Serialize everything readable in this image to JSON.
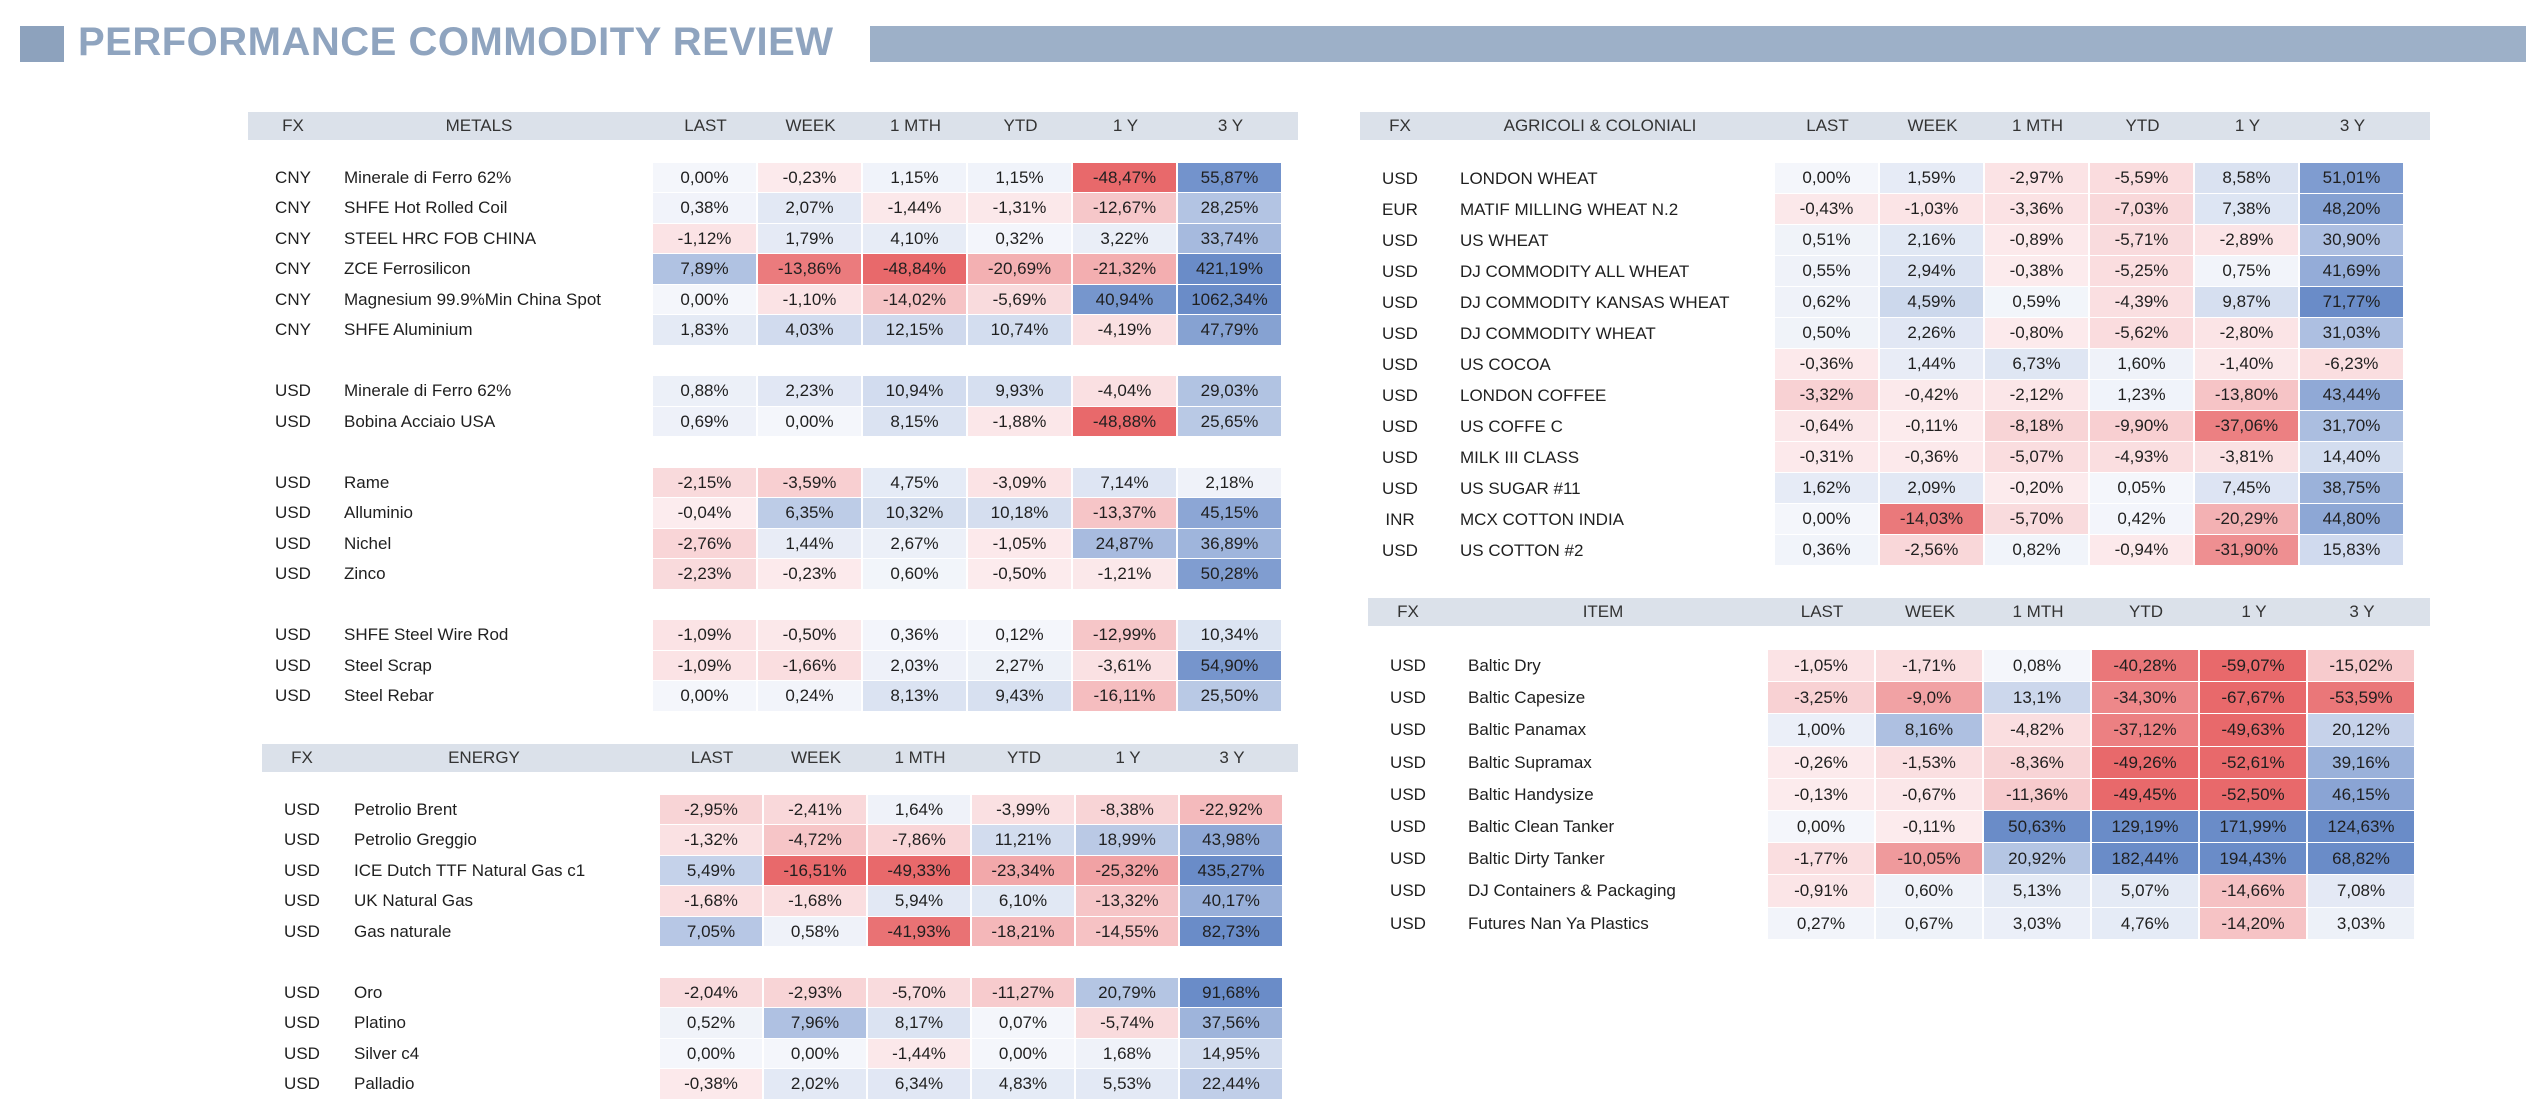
{
  "title": "PERFORMANCE COMMODITY REVIEW",
  "colors": {
    "accent": "#8fa4bf",
    "header_bg": "#dbe1ea",
    "neg_strong": "#e8696b",
    "pos_strong": "#6a8cc8"
  },
  "col_headers": [
    "LAST",
    "WEEK",
    "1 MTH",
    "YTD",
    "1 Y",
    "3 Y"
  ],
  "fx_header": "FX",
  "tables": [
    {
      "id": "metals",
      "header": "METALS",
      "groups": [
        [
          {
            "fx": "CNY",
            "name": "Minerale di Ferro 62%",
            "v": [
              "0,00%",
              "-0,23%",
              "1,15%",
              "1,15%",
              "-48,47%",
              "55,87%"
            ]
          },
          {
            "fx": "CNY",
            "name": "SHFE Hot Rolled Coil",
            "v": [
              "0,38%",
              "2,07%",
              "-1,44%",
              "-1,31%",
              "-12,67%",
              "28,25%"
            ]
          },
          {
            "fx": "CNY",
            "name": "STEEL HRC FOB CHINA",
            "v": [
              "-1,12%",
              "1,79%",
              "4,10%",
              "0,32%",
              "3,22%",
              "33,74%"
            ]
          },
          {
            "fx": "CNY",
            "name": "ZCE Ferrosilicon",
            "v": [
              "7,89%",
              "-13,86%",
              "-48,84%",
              "-20,69%",
              "-21,32%",
              "421,19%"
            ]
          },
          {
            "fx": "CNY",
            "name": "Magnesium 99.9%Min China Spot",
            "v": [
              "0,00%",
              "-1,10%",
              "-14,02%",
              "-5,69%",
              "40,94%",
              "1062,34%"
            ]
          },
          {
            "fx": "CNY",
            "name": "SHFE Aluminium",
            "v": [
              "1,83%",
              "4,03%",
              "12,15%",
              "10,74%",
              "-4,19%",
              "47,79%"
            ]
          }
        ],
        [
          {
            "fx": "USD",
            "name": "Minerale di Ferro 62%",
            "v": [
              "0,88%",
              "2,23%",
              "10,94%",
              "9,93%",
              "-4,04%",
              "29,03%"
            ]
          },
          {
            "fx": "USD",
            "name": "Bobina Acciaio USA",
            "v": [
              "0,69%",
              "0,00%",
              "8,15%",
              "-1,88%",
              "-48,88%",
              "25,65%"
            ]
          }
        ],
        [
          {
            "fx": "USD",
            "name": "Rame",
            "v": [
              "-2,15%",
              "-3,59%",
              "4,75%",
              "-3,09%",
              "7,14%",
              "2,18%"
            ]
          },
          {
            "fx": "USD",
            "name": "Alluminio",
            "v": [
              "-0,04%",
              "6,35%",
              "10,32%",
              "10,18%",
              "-13,37%",
              "45,15%"
            ]
          },
          {
            "fx": "USD",
            "name": "Nichel",
            "v": [
              "-2,76%",
              "1,44%",
              "2,67%",
              "-1,05%",
              "24,87%",
              "36,89%"
            ]
          },
          {
            "fx": "USD",
            "name": "Zinco",
            "v": [
              "-2,23%",
              "-0,23%",
              "0,60%",
              "-0,50%",
              "-1,21%",
              "50,28%"
            ]
          }
        ],
        [
          {
            "fx": "USD",
            "name": "SHFE Steel Wire Rod",
            "v": [
              "-1,09%",
              "-0,50%",
              "0,36%",
              "0,12%",
              "-12,99%",
              "10,34%"
            ]
          },
          {
            "fx": "USD",
            "name": "Steel Scrap",
            "v": [
              "-1,09%",
              "-1,66%",
              "2,03%",
              "2,27%",
              "-3,61%",
              "54,90%"
            ]
          },
          {
            "fx": "USD",
            "name": "Steel Rebar",
            "v": [
              "0,00%",
              "0,24%",
              "8,13%",
              "9,43%",
              "-16,11%",
              "25,50%"
            ]
          }
        ]
      ]
    },
    {
      "id": "energy",
      "header": "ENERGY",
      "groups": [
        [
          {
            "fx": "USD",
            "name": "Petrolio Brent",
            "v": [
              "-2,95%",
              "-2,41%",
              "1,64%",
              "-3,99%",
              "-8,38%",
              "-22,92%"
            ]
          },
          {
            "fx": "USD",
            "name": "Petrolio Greggio",
            "v": [
              "-1,32%",
              "-4,72%",
              "-7,86%",
              "11,21%",
              "18,99%",
              "43,98%"
            ]
          },
          {
            "fx": "USD",
            "name": "ICE Dutch TTF Natural Gas c1",
            "v": [
              "5,49%",
              "-16,51%",
              "-49,33%",
              "-23,34%",
              "-25,32%",
              "435,27%"
            ]
          },
          {
            "fx": "USD",
            "name": "UK Natural Gas",
            "v": [
              "-1,68%",
              "-1,68%",
              "5,94%",
              "6,10%",
              "-13,32%",
              "40,17%"
            ]
          },
          {
            "fx": "USD",
            "name": "Gas naturale",
            "v": [
              "7,05%",
              "0,58%",
              "-41,93%",
              "-18,21%",
              "-14,55%",
              "82,73%"
            ]
          }
        ],
        [
          {
            "fx": "USD",
            "name": "Oro",
            "v": [
              "-2,04%",
              "-2,93%",
              "-5,70%",
              "-11,27%",
              "20,79%",
              "91,68%"
            ]
          },
          {
            "fx": "USD",
            "name": "Platino",
            "v": [
              "0,52%",
              "7,96%",
              "8,17%",
              "0,07%",
              "-5,74%",
              "37,56%"
            ]
          },
          {
            "fx": "USD",
            "name": "Silver c4",
            "v": [
              "0,00%",
              "0,00%",
              "-1,44%",
              "0,00%",
              "1,68%",
              "14,95%"
            ]
          },
          {
            "fx": "USD",
            "name": "Palladio",
            "v": [
              "-0,38%",
              "2,02%",
              "6,34%",
              "4,83%",
              "5,53%",
              "22,44%"
            ]
          }
        ]
      ]
    },
    {
      "id": "agri",
      "header": "AGRICOLI & COLONIALI",
      "groups": [
        [
          {
            "fx": "USD",
            "name": "LONDON WHEAT",
            "v": [
              "0,00%",
              "1,59%",
              "-2,97%",
              "-5,59%",
              "8,58%",
              "51,01%"
            ]
          },
          {
            "fx": "EUR",
            "name": "MATIF MILLING WHEAT N.2",
            "v": [
              "-0,43%",
              "-1,03%",
              "-3,36%",
              "-7,03%",
              "7,38%",
              "48,20%"
            ]
          },
          {
            "fx": "USD",
            "name": "US WHEAT",
            "v": [
              "0,51%",
              "2,16%",
              "-0,89%",
              "-5,71%",
              "-2,89%",
              "30,90%"
            ]
          },
          {
            "fx": "USD",
            "name": "DJ COMMODITY ALL WHEAT",
            "v": [
              "0,55%",
              "2,94%",
              "-0,38%",
              "-5,25%",
              "0,75%",
              "41,69%"
            ]
          },
          {
            "fx": "USD",
            "name": "DJ COMMODITY KANSAS WHEAT",
            "v": [
              "0,62%",
              "4,59%",
              "0,59%",
              "-4,39%",
              "9,87%",
              "71,77%"
            ]
          },
          {
            "fx": "USD",
            "name": "DJ COMMODITY WHEAT",
            "v": [
              "0,50%",
              "2,26%",
              "-0,80%",
              "-5,62%",
              "-2,80%",
              "31,03%"
            ]
          },
          {
            "fx": "USD",
            "name": "US COCOA",
            "v": [
              "-0,36%",
              "1,44%",
              "6,73%",
              "1,60%",
              "-1,40%",
              "-6,23%"
            ]
          },
          {
            "fx": "USD",
            "name": "LONDON COFFEE",
            "v": [
              "-3,32%",
              "-0,42%",
              "-2,12%",
              "1,23%",
              "-13,80%",
              "43,44%"
            ]
          },
          {
            "fx": "USD",
            "name": "US COFFE C",
            "v": [
              "-0,64%",
              "-0,11%",
              "-8,18%",
              "-9,90%",
              "-37,06%",
              "31,70%"
            ]
          },
          {
            "fx": "USD",
            "name": "MILK III CLASS",
            "v": [
              "-0,31%",
              "-0,36%",
              "-5,07%",
              "-4,93%",
              "-3,81%",
              "14,40%"
            ]
          },
          {
            "fx": "USD",
            "name": "US SUGAR #11",
            "v": [
              "1,62%",
              "2,09%",
              "-0,20%",
              "0,05%",
              "7,45%",
              "38,75%"
            ]
          },
          {
            "fx": "INR",
            "name": "MCX COTTON INDIA",
            "v": [
              "0,00%",
              "-14,03%",
              "-5,70%",
              "0,42%",
              "-20,29%",
              "44,80%"
            ]
          },
          {
            "fx": "USD",
            "name": "US COTTON #2",
            "v": [
              "0,36%",
              "-2,56%",
              "0,82%",
              "-0,94%",
              "-31,90%",
              "15,83%"
            ]
          }
        ]
      ]
    },
    {
      "id": "item",
      "header": "ITEM",
      "groups": [
        [
          {
            "fx": "USD",
            "name": "Baltic Dry",
            "v": [
              "-1,05%",
              "-1,71%",
              "0,08%",
              "-40,28%",
              "-59,07%",
              "-15,02%"
            ]
          },
          {
            "fx": "USD",
            "name": "Baltic Capesize",
            "v": [
              "-3,25%",
              "-9,0%",
              "13,1%",
              "-34,30%",
              "-67,67%",
              "-53,59%"
            ]
          },
          {
            "fx": "USD",
            "name": "Baltic Panamax",
            "v": [
              "1,00%",
              "8,16%",
              "-4,82%",
              "-37,12%",
              "-49,63%",
              "20,12%"
            ]
          },
          {
            "fx": "USD",
            "name": "Baltic Supramax",
            "v": [
              "-0,26%",
              "-1,53%",
              "-8,36%",
              "-49,26%",
              "-52,61%",
              "39,16%"
            ]
          },
          {
            "fx": "USD",
            "name": "Baltic Handysize",
            "v": [
              "-0,13%",
              "-0,67%",
              "-11,36%",
              "-49,45%",
              "-52,50%",
              "46,15%"
            ]
          },
          {
            "fx": "USD",
            "name": "Baltic Clean Tanker",
            "v": [
              "0,00%",
              "-0,11%",
              "50,63%",
              "129,19%",
              "171,99%",
              "124,63%"
            ]
          },
          {
            "fx": "USD",
            "name": "Baltic Dirty Tanker",
            "v": [
              "-1,77%",
              "-10,05%",
              "20,92%",
              "182,44%",
              "194,43%",
              "68,82%"
            ]
          },
          {
            "fx": "USD",
            "name": "DJ Containers & Packaging",
            "v": [
              "-0,91%",
              "0,60%",
              "5,13%",
              "5,07%",
              "-14,66%",
              "7,08%"
            ]
          },
          {
            "fx": "USD",
            "name": "Futures Nan Ya Plastics",
            "v": [
              "0,27%",
              "0,67%",
              "3,03%",
              "4,76%",
              "-14,20%",
              "3,03%"
            ]
          }
        ]
      ]
    }
  ]
}
